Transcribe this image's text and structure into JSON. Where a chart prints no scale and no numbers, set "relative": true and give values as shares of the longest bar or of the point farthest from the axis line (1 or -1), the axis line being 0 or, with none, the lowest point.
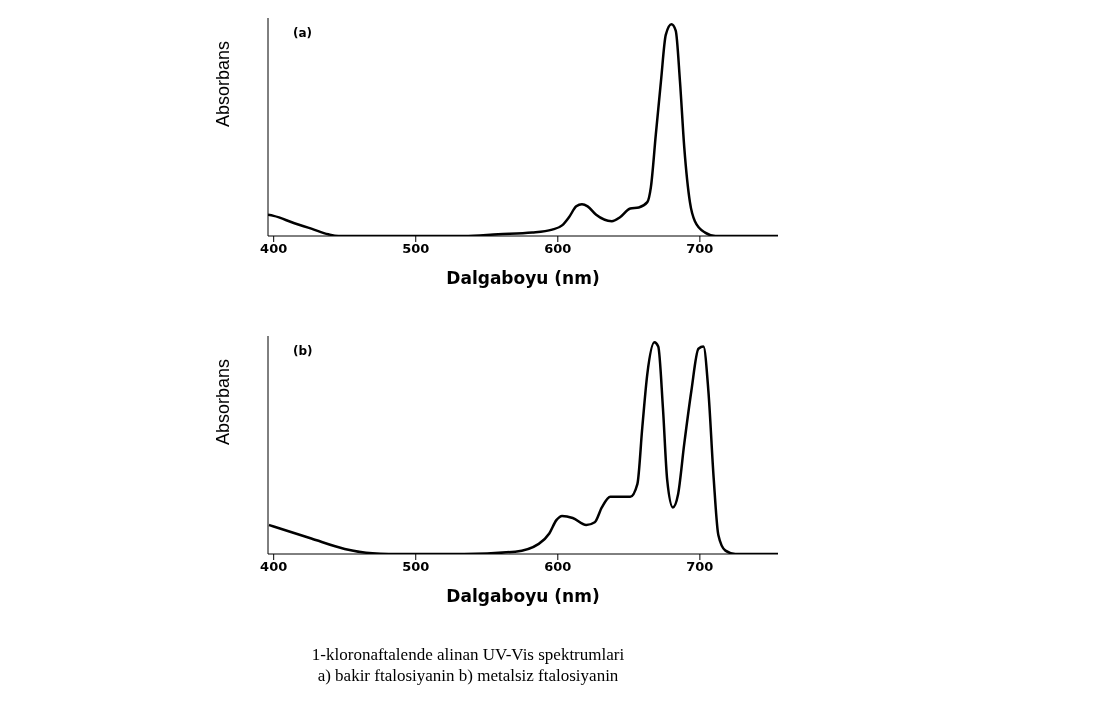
{
  "chart_data": [
    {
      "type": "line",
      "xlabel": "Dalgaboyu (nm)",
      "ylabel": "Absorbans",
      "relative": true,
      "color": "#000000",
      "xlim": [
        396,
        755
      ],
      "xticks": [
        400,
        500,
        600,
        700
      ],
      "annotations": [
        "(a)"
      ],
      "x": [
        396,
        400,
        414.6,
        426.5,
        438.5,
        445.6,
        534,
        558,
        582,
        596,
        603,
        608,
        613,
        617,
        621,
        627,
        638,
        644,
        651,
        657,
        663,
        665.5,
        669,
        672.6,
        676,
        680,
        683,
        686,
        689,
        693,
        696.5,
        703.7,
        711,
        755
      ],
      "values": [
        0.1,
        0.095,
        0.06,
        0.035,
        0.008,
        0,
        0,
        0.008,
        0.016,
        0.03,
        0.05,
        0.09,
        0.14,
        0.15,
        0.14,
        0.1,
        0.07,
        0.09,
        0.13,
        0.135,
        0.16,
        0.23,
        0.48,
        0.73,
        0.95,
        1.0,
        0.97,
        0.73,
        0.42,
        0.16,
        0.07,
        0.016,
        0,
        0
      ]
    },
    {
      "type": "line",
      "xlabel": "Dalgaboyu (nm)",
      "ylabel": "Absorbans",
      "relative": true,
      "color": "#000000",
      "xlim": [
        396,
        755
      ],
      "xticks": [
        400,
        500,
        600,
        700
      ],
      "annotations": [
        "(b)",
        "1-kloronaftalende alinan UV-Vis spektrumlari",
        "a) bakir ftalosiyanin  b) metalsiz ftalosiyanin"
      ],
      "x": [
        396.7,
        400,
        426.5,
        450,
        469.5,
        481,
        534,
        570,
        586.6,
        594,
        599,
        603,
        610.5,
        620,
        626,
        631,
        637,
        644,
        651,
        656,
        659.5,
        663,
        668,
        670.7,
        674,
        677,
        681,
        684.6,
        689,
        694,
        699,
        702.5,
        706,
        709.7,
        713,
        718,
        725,
        755
      ],
      "values": [
        0.137,
        0.13,
        0.073,
        0.024,
        0.003,
        0,
        0,
        0.011,
        0.048,
        0.097,
        0.16,
        0.18,
        0.17,
        0.137,
        0.15,
        0.22,
        0.27,
        0.27,
        0.27,
        0.33,
        0.6,
        0.85,
        1.0,
        0.98,
        0.69,
        0.35,
        0.22,
        0.28,
        0.52,
        0.77,
        0.97,
        0.98,
        0.77,
        0.36,
        0.09,
        0.016,
        0,
        0
      ]
    }
  ]
}
